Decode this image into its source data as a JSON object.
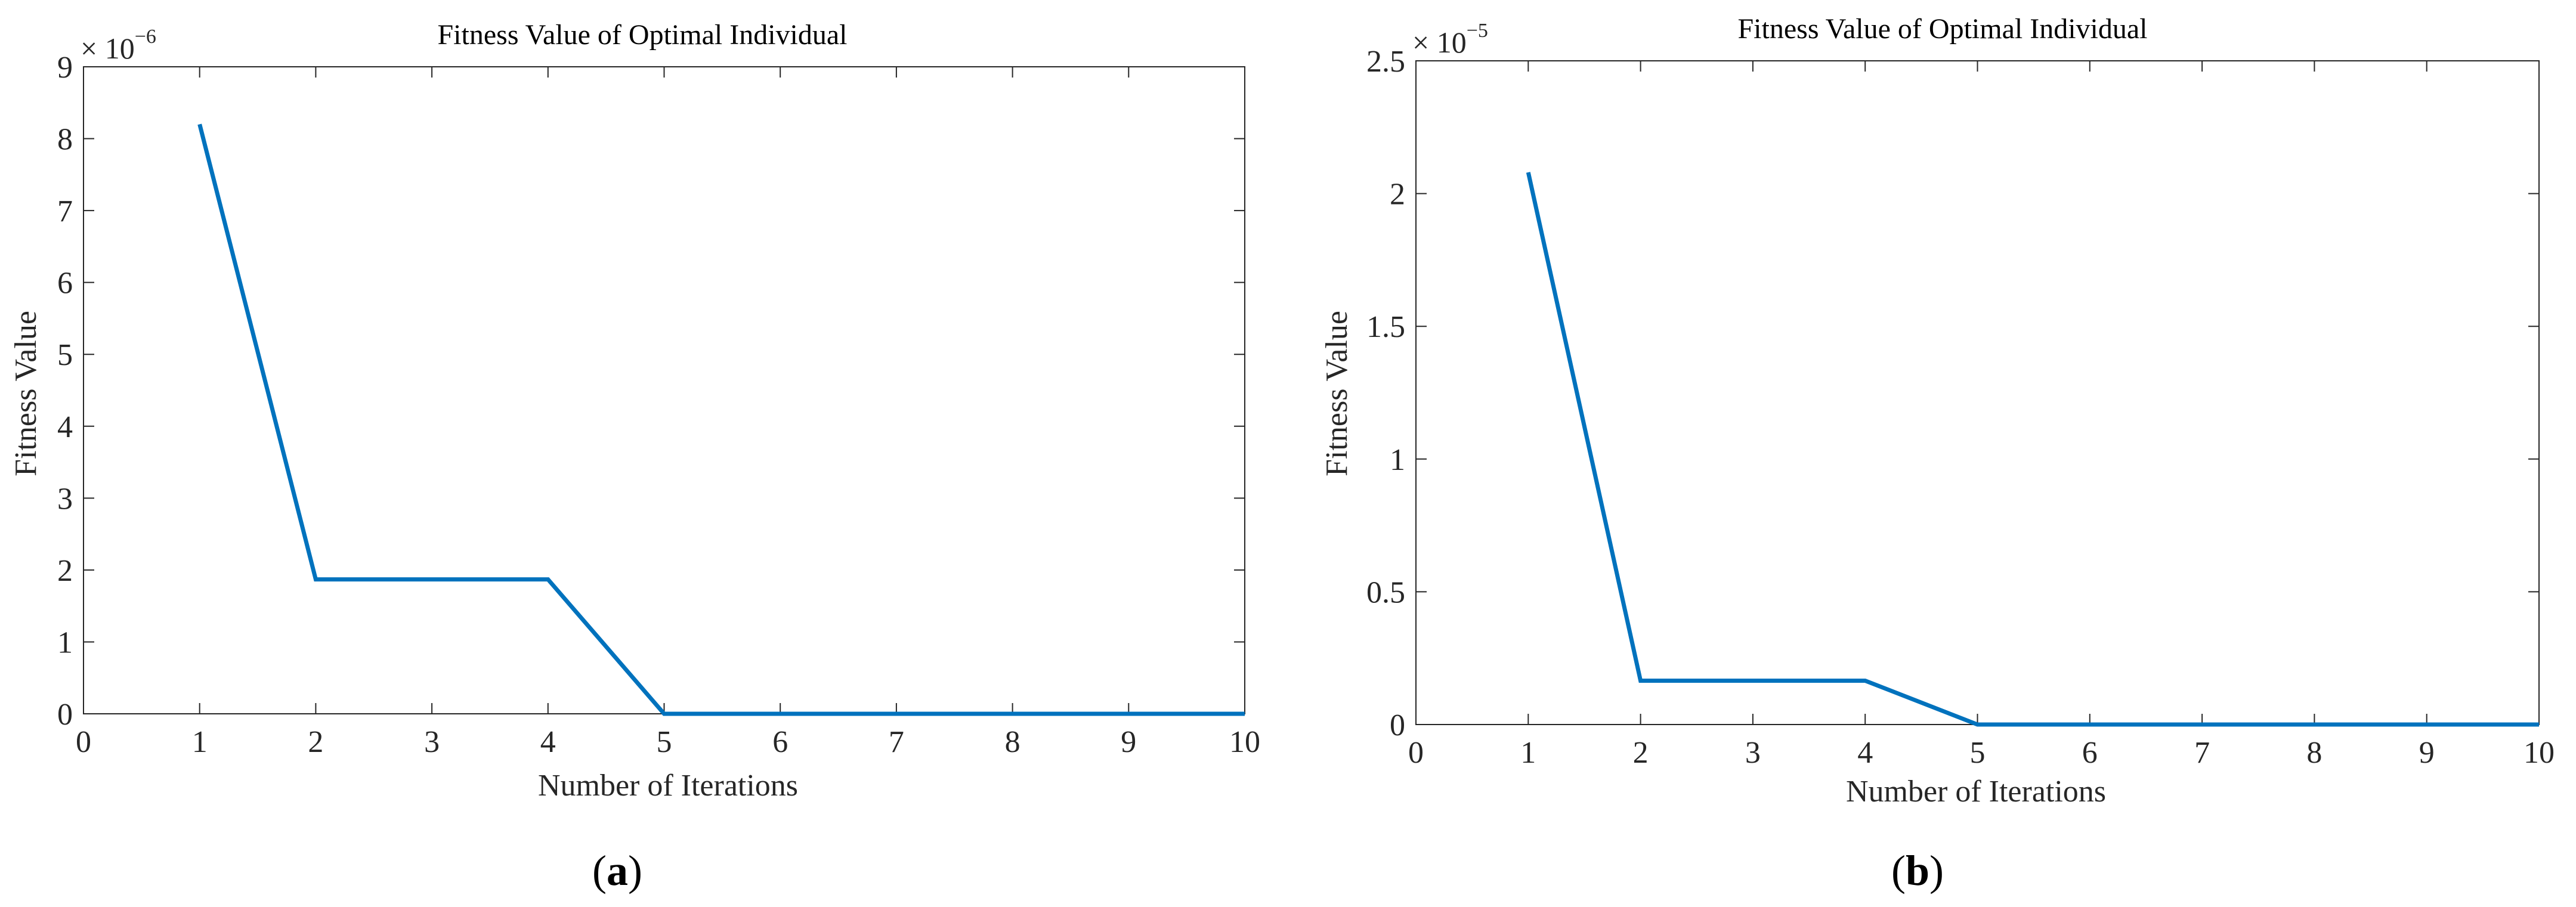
{
  "colors": {
    "series": "#0072BD",
    "axes": "#262626",
    "background": "#ffffff"
  },
  "panels": [
    {
      "label": "a",
      "label_open": "(",
      "label_close": ")"
    },
    {
      "label": "b",
      "label_open": "(",
      "label_close": ")"
    }
  ],
  "chart_data": [
    {
      "type": "line",
      "title": "Fitness Value of Optimal Individual",
      "xlabel": "Number of Iterations",
      "ylabel": "Fitness Value",
      "xlim": [
        0,
        10
      ],
      "ylim": [
        0,
        9e-06
      ],
      "x_ticks": [
        0,
        1,
        2,
        3,
        4,
        5,
        6,
        7,
        8,
        9,
        10
      ],
      "x_tick_labels": [
        "0",
        "1",
        "2",
        "3",
        "4",
        "5",
        "6",
        "7",
        "8",
        "9",
        "10"
      ],
      "y_ticks": [
        0,
        1e-06,
        2e-06,
        3e-06,
        4e-06,
        5e-06,
        6e-06,
        7e-06,
        8e-06,
        9e-06
      ],
      "y_tick_labels": [
        "0",
        "1",
        "2",
        "3",
        "4",
        "5",
        "6",
        "7",
        "8",
        "9"
      ],
      "y_multiplier_base": "× 10",
      "y_multiplier_exponent": "−6",
      "grid": false,
      "legend": "none",
      "series": [
        {
          "x": [
            1,
            2,
            3,
            4,
            5,
            6,
            7,
            8,
            9,
            10
          ],
          "y": [
            8.2e-06,
            1.87e-06,
            1.87e-06,
            1.87e-06,
            0,
            0,
            0,
            0,
            0,
            0
          ]
        }
      ]
    },
    {
      "type": "line",
      "title": "Fitness Value of Optimal Individual",
      "xlabel": "Number of Iterations",
      "ylabel": "Fitness Value",
      "xlim": [
        0,
        10
      ],
      "ylim": [
        0,
        2.5e-05
      ],
      "x_ticks": [
        0,
        1,
        2,
        3,
        4,
        5,
        6,
        7,
        8,
        9,
        10
      ],
      "x_tick_labels": [
        "0",
        "1",
        "2",
        "3",
        "4",
        "5",
        "6",
        "7",
        "8",
        "9",
        "10"
      ],
      "y_ticks": [
        0,
        5e-06,
        1e-05,
        1.5e-05,
        2e-05,
        2.5e-05
      ],
      "y_tick_labels": [
        "0",
        "0.5",
        "1",
        "1.5",
        "2",
        "2.5"
      ],
      "y_multiplier_base": "× 10",
      "y_multiplier_exponent": "−5",
      "grid": false,
      "legend": "none",
      "series": [
        {
          "x": [
            1,
            2,
            3,
            4,
            5,
            6,
            7,
            8,
            9,
            10
          ],
          "y": [
            2.08e-05,
            1.65e-06,
            1.65e-06,
            1.65e-06,
            0,
            0,
            0,
            0,
            0,
            0
          ]
        }
      ]
    }
  ]
}
